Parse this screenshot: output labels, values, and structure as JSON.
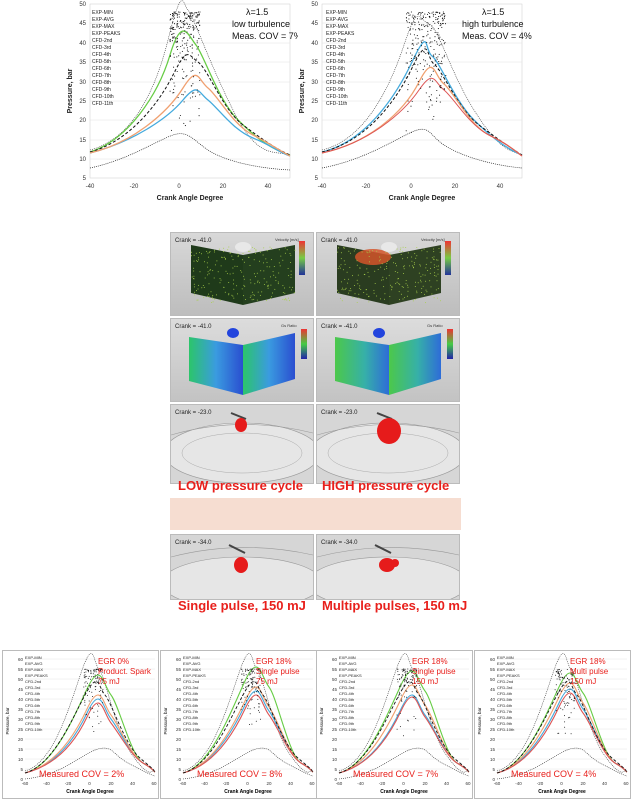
{
  "top_left": {
    "anno1": "λ=1.5",
    "anno2": "low turbulence",
    "anno3": "Meas. COV = 7%",
    "xlabel": "Crank Angle Degree",
    "ylabel": "Pressure, bar",
    "xticks": [
      "-40",
      "-20",
      "0",
      "20",
      "40"
    ],
    "yticks": [
      "5",
      "10",
      "15",
      "20",
      "25",
      "30",
      "35",
      "40",
      "45",
      "50"
    ],
    "legend": [
      "EXP-MIN",
      "EXP-AVG",
      "EXP-MAX",
      "EXP-PEAKS",
      "CFD-2nd",
      "CFD-3rd",
      "CFD-4th",
      "CFD-5th",
      "CFD-6th",
      "CFD-7th",
      "CFD-8th",
      "CFD-9th",
      "CFD-10th",
      "CFD-11th"
    ]
  },
  "top_right": {
    "anno1": "λ=1.5",
    "anno2": "high turbulence",
    "anno3": "Meas. COV = 4%",
    "xlabel": "Crank Angle Degree",
    "ylabel": "Pressure, bar",
    "xticks": [
      "-40",
      "-20",
      "0",
      "20",
      "40"
    ],
    "yticks": [
      "5",
      "10",
      "15",
      "20",
      "25",
      "30",
      "35",
      "40",
      "45",
      "50"
    ],
    "legend": [
      "EXP-MIN",
      "EXP-AVG",
      "EXP-MAX",
      "EXP-PEAKS",
      "CFD-2nd",
      "CFD-3rd",
      "CFD-4th",
      "CFD-5th",
      "CFD-6th",
      "CFD-7th",
      "CFD-8th",
      "CFD-9th",
      "CFD-10th",
      "CFD-11th"
    ]
  },
  "cfd": {
    "crank1": "Crank = -41.0",
    "crank2": "Crank = -41.0",
    "crank3": "Crank = -23.0",
    "crank4": "Crank = -23.0",
    "crank5": "Crank = -34.0",
    "crank6": "Crank = -34.0",
    "vel_label": "Velocity [m/s]",
    "gs_label": "Gs Ratio",
    "low_cycle": "LOW pressure cycle",
    "high_cycle": "HIGH pressure cycle",
    "single_pulse": "Single pulse, 150 mJ",
    "multi_pulse": "Multiple pulses, 150 mJ"
  },
  "bottom": [
    {
      "line1": "EGR 0%",
      "line2": "Product. Spark",
      "line3": "75 mJ",
      "cov": "Measured COV = 2%"
    },
    {
      "line1": "EGR 18%",
      "line2": "Single pulse",
      "line3": "75 mJ",
      "cov": "Measured COV = 8%"
    },
    {
      "line1": "EGR 18%",
      "line2": "Single pulse",
      "line3": "150 mJ",
      "cov": "Measured COV = 7%"
    },
    {
      "line1": "EGR 18%",
      "line2": "Multi pulse",
      "line3": "150 mJ",
      "cov": "Measured COV = 4%"
    }
  ],
  "bottom_xlabel": "Crank Angle Degree",
  "bottom_ylabel": "Pressure, bar",
  "bottom_xticks": [
    "-60",
    "-40",
    "-20",
    "0",
    "20",
    "40",
    "60"
  ],
  "bottom_yticks": [
    "0",
    "5",
    "10",
    "15",
    "20",
    "25",
    "30",
    "35",
    "40",
    "45",
    "50",
    "55",
    "60"
  ],
  "bottom_legend": [
    "EXP-MIN",
    "EXP-AVG",
    "EXP-MAX",
    "EXP-PEAKS",
    "CFD-2nd",
    "CFD-3rd",
    "CFD-4th",
    "CFD-5th",
    "CFD-6th",
    "CFD-7th",
    "CFD-8th",
    "CFD-9th",
    "CFD-10th"
  ],
  "chart_data": [
    {
      "type": "line",
      "xlabel": "Crank Angle Degree",
      "ylabel": "Pressure, bar",
      "xlim": [
        -40,
        50
      ],
      "ylim": [
        5,
        50
      ],
      "series": [
        {
          "name": "EXP-MAX",
          "peak_x": 0,
          "peak_y": 48
        },
        {
          "name": "EXP-AVG",
          "peak_x": 4,
          "peak_y": 39
        },
        {
          "name": "EXP-MIN",
          "peak_x": -2,
          "peak_y": 17
        },
        {
          "name": "CFD-2nd",
          "peak_x": 6,
          "peak_y": 41
        },
        {
          "name": "CFD-7th",
          "peak_x": 10,
          "peak_y": 25
        }
      ]
    },
    {
      "type": "line",
      "xlabel": "Crank Angle Degree",
      "ylabel": "Pressure, bar",
      "xlim": [
        -40,
        50
      ],
      "ylim": [
        5,
        50
      ],
      "series": [
        {
          "name": "EXP-MAX",
          "peak_x": 4,
          "peak_y": 45
        },
        {
          "name": "EXP-AVG",
          "peak_x": 8,
          "peak_y": 37
        },
        {
          "name": "EXP-MIN",
          "peak_x": 0,
          "peak_y": 18
        },
        {
          "name": "CFD-7th",
          "peak_x": 10,
          "peak_y": 37
        },
        {
          "name": "CFD-9th",
          "peak_x": 12,
          "peak_y": 31
        }
      ]
    }
  ]
}
